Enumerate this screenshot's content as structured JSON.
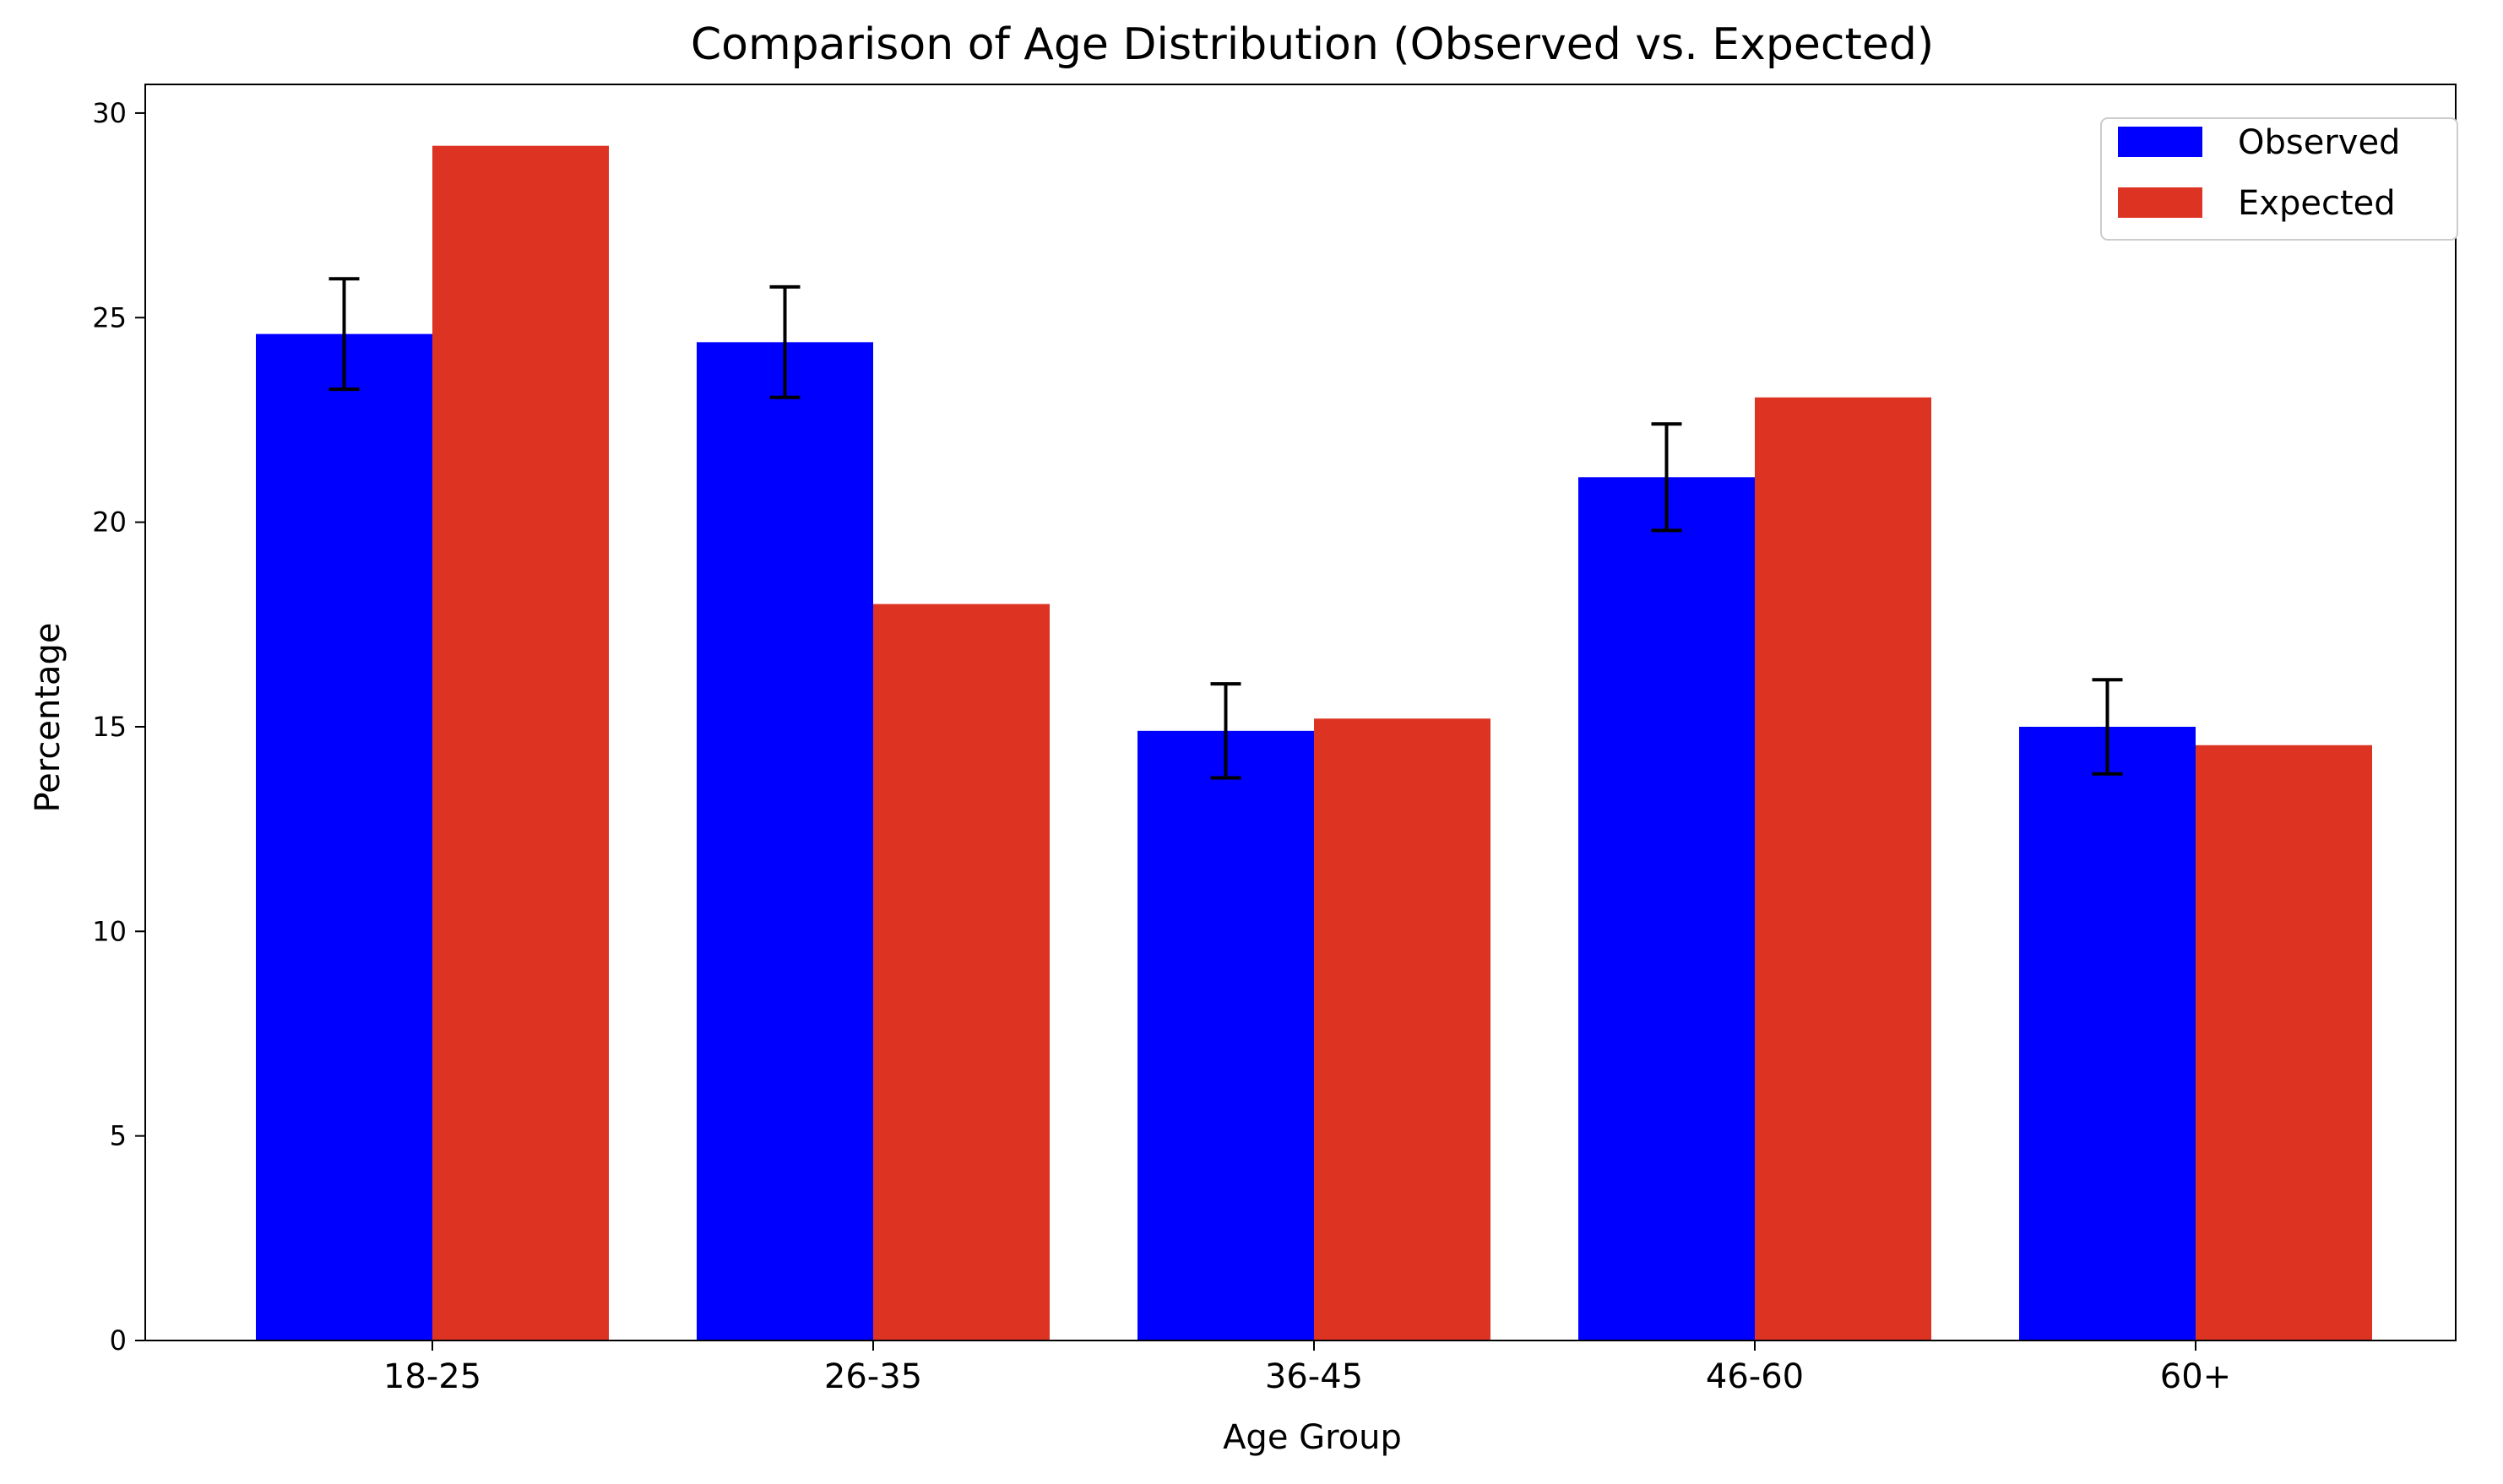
{
  "chart_data": {
    "type": "bar",
    "title": "Comparison of Age Distribution (Observed vs. Expected)",
    "xlabel": "Age Group",
    "ylabel": "Percentage",
    "categories": [
      "18-25",
      "26-35",
      "36-45",
      "46-60",
      "60+"
    ],
    "series": [
      {
        "name": "Observed",
        "color": "#0000ff",
        "values": [
          24.6,
          24.4,
          14.9,
          21.1,
          15.0
        ],
        "errors": [
          1.35,
          1.35,
          1.15,
          1.3,
          1.15
        ]
      },
      {
        "name": "Expected",
        "color": "#dc3322",
        "values": [
          29.2,
          18.0,
          15.2,
          23.05,
          14.55
        ]
      }
    ],
    "ylim": [
      0,
      30.7
    ],
    "yticks": [
      0,
      5,
      10,
      15,
      20,
      25,
      30
    ],
    "grid": false,
    "legend": "top-right"
  }
}
